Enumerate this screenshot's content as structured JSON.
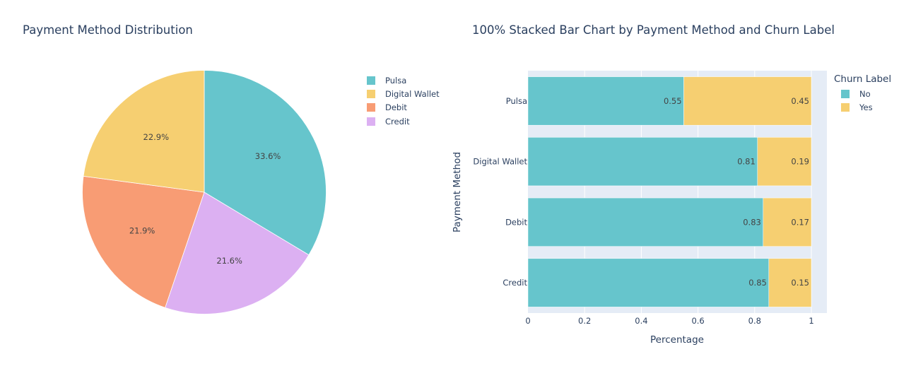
{
  "pie": {
    "title": "Payment Method Distribution",
    "legend": [
      {
        "label": "Pulsa",
        "color": "#66c5cc"
      },
      {
        "label": "Digital Wallet",
        "color": "#f6cf71"
      },
      {
        "label": "Debit",
        "color": "#f89c74"
      },
      {
        "label": "Credit",
        "color": "#dcb0f2"
      }
    ]
  },
  "bar": {
    "title": "100% Stacked Bar Chart by Payment Method and Churn Label",
    "xlabel": "Percentage",
    "ylabel": "Payment Method",
    "legend_title": "Churn Label",
    "legend": [
      {
        "label": "No",
        "color": "#66c5cc"
      },
      {
        "label": "Yes",
        "color": "#f6cf71"
      }
    ],
    "xticks": [
      "0",
      "0.2",
      "0.4",
      "0.6",
      "0.8",
      "1"
    ]
  },
  "chart_data": [
    {
      "type": "pie",
      "title": "Payment Method Distribution",
      "labels": [
        "Pulsa",
        "Credit",
        "Debit",
        "Digital Wallet"
      ],
      "values": [
        33.6,
        21.6,
        21.9,
        22.9
      ],
      "text": [
        "33.6%",
        "21.6%",
        "21.9%",
        "22.9%"
      ],
      "colors": [
        "#66c5cc",
        "#dcb0f2",
        "#f89c74",
        "#f6cf71"
      ],
      "legend_order": [
        "Pulsa",
        "Digital Wallet",
        "Debit",
        "Credit"
      ],
      "legend_position": "right",
      "direction": "clockwise",
      "rotation_start": "12 o'clock"
    },
    {
      "type": "bar",
      "orientation": "horizontal",
      "barmode": "stack",
      "title": "100% Stacked Bar Chart by Payment Method and Churn Label",
      "categories": [
        "Pulsa",
        "Digital Wallet",
        "Debit",
        "Credit"
      ],
      "series": [
        {
          "name": "No",
          "color": "#66c5cc",
          "values": [
            0.55,
            0.81,
            0.83,
            0.85
          ]
        },
        {
          "name": "Yes",
          "color": "#f6cf71",
          "values": [
            0.45,
            0.19,
            0.17,
            0.15
          ]
        }
      ],
      "xlabel": "Percentage",
      "ylabel": "Payment Method",
      "xlim": [
        0,
        1.05
      ],
      "xticks": [
        0,
        0.2,
        0.4,
        0.6,
        0.8,
        1
      ],
      "legend_title": "Churn Label",
      "legend_position": "right",
      "grid": true
    }
  ]
}
